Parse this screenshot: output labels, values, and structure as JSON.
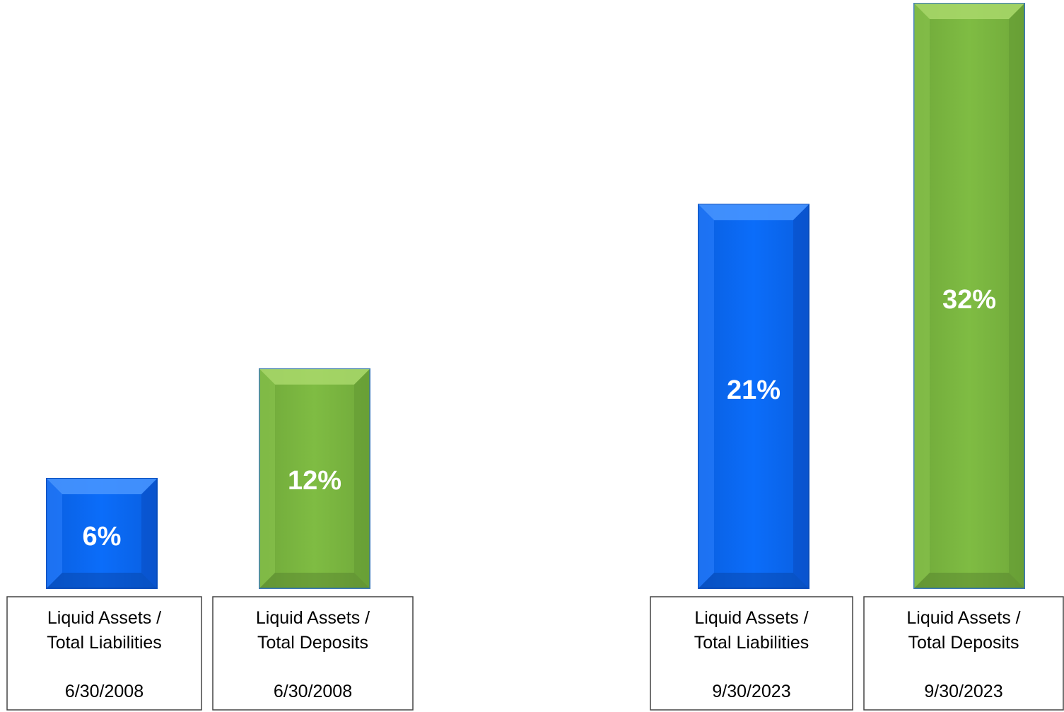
{
  "chart_data": {
    "type": "bar",
    "title": "",
    "xlabel": "",
    "ylabel": "",
    "ylim": [
      0,
      32
    ],
    "grid": false,
    "legend": "none",
    "bars": [
      {
        "value": 6,
        "label": "6%",
        "category_line1": "Liquid Assets /",
        "category_line2": "Total Liabilities",
        "date": "6/30/2008",
        "color": "#0a6cf5"
      },
      {
        "value": 12,
        "label": "12%",
        "category_line1": "Liquid Assets /",
        "category_line2": "Total Deposits",
        "date": "6/30/2008",
        "color": "#7db942"
      },
      {
        "value": 21,
        "label": "21%",
        "category_line1": "Liquid Assets /",
        "category_line2": "Total Liabilities",
        "date": "9/30/2023",
        "color": "#0a6cf5"
      },
      {
        "value": 32,
        "label": "32%",
        "category_line1": "Liquid Assets /",
        "category_line2": "Total Deposits",
        "date": "9/30/2023",
        "color": "#7db942"
      }
    ]
  },
  "colors": {
    "blue_bar": "#0a6cf5",
    "green_bar": "#7db942",
    "bar_label": "#ffffff",
    "box_border": "#444444"
  }
}
